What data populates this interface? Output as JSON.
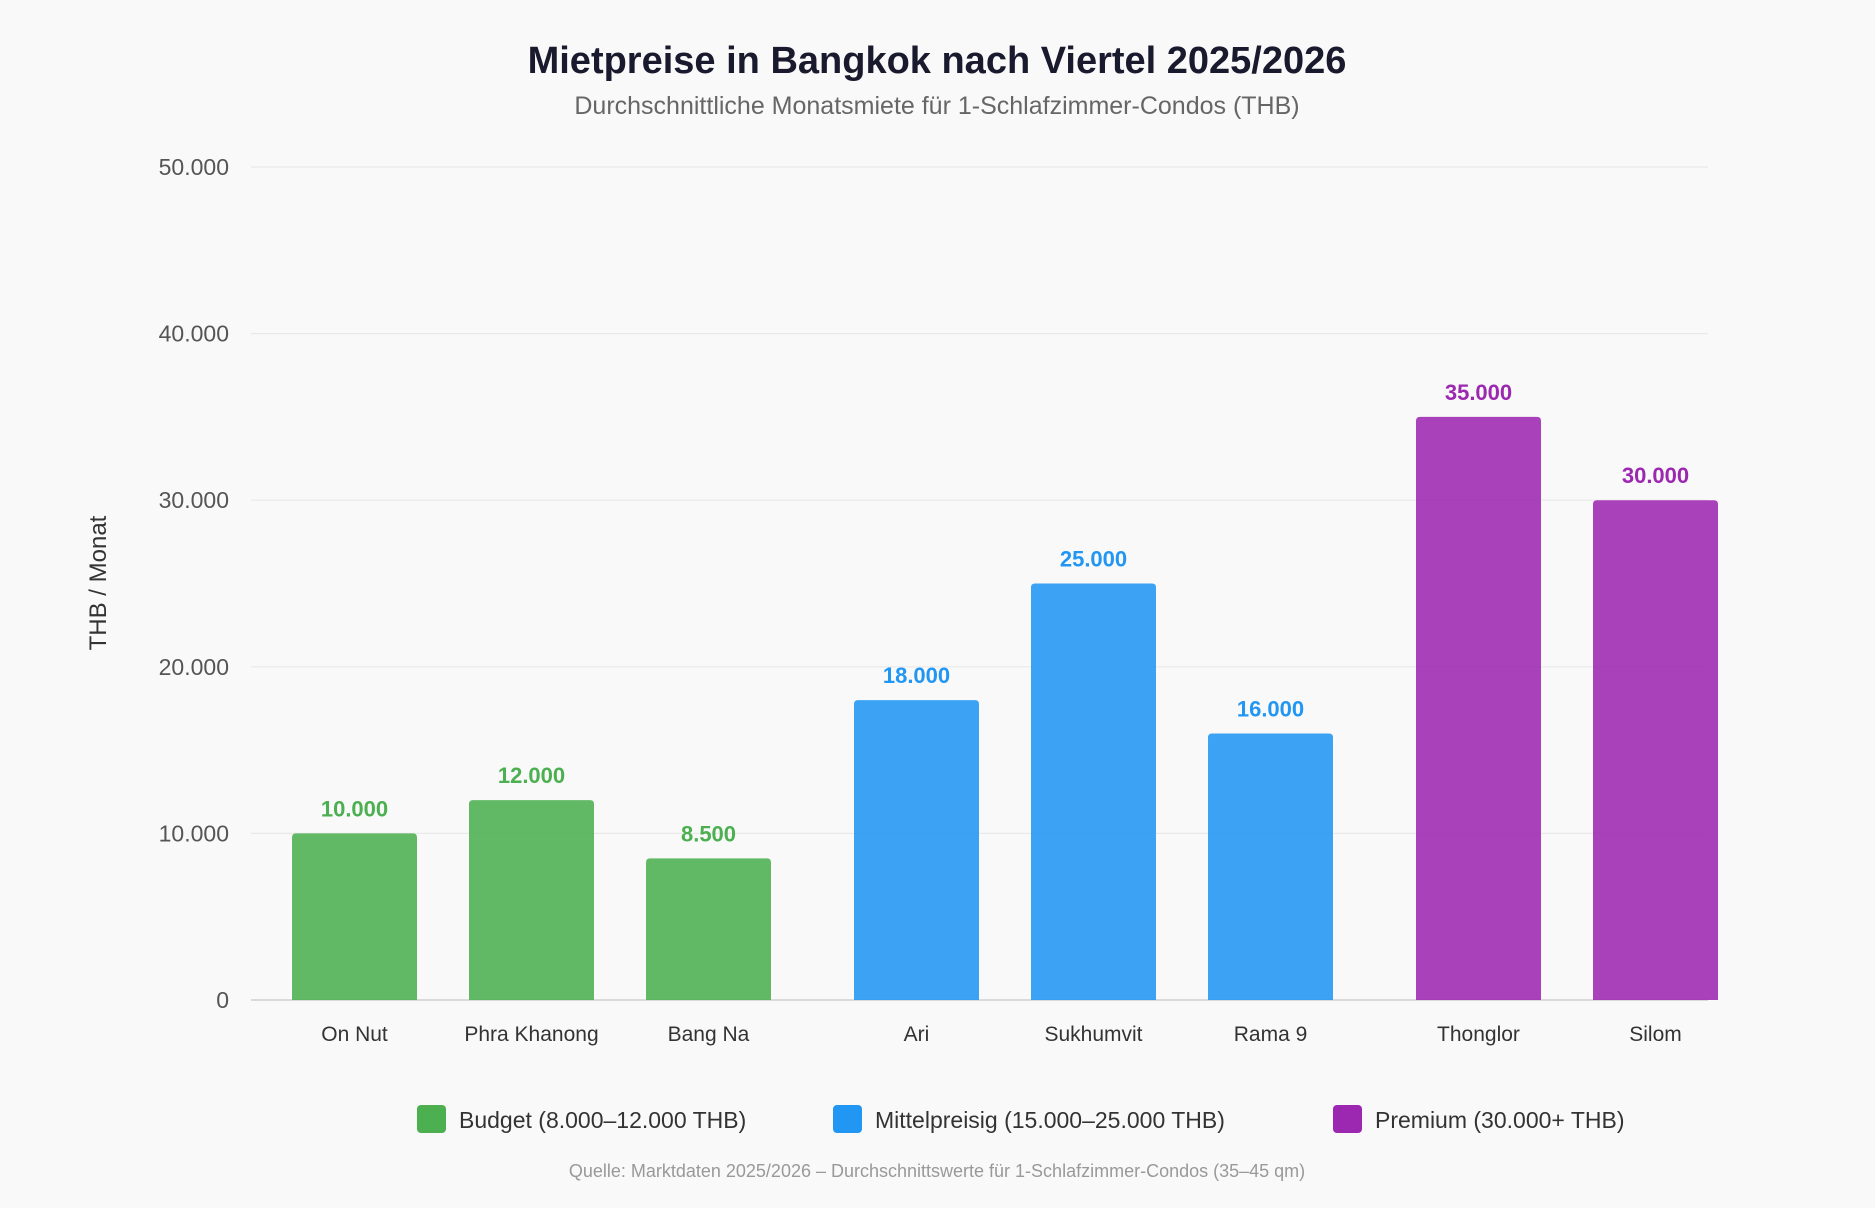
{
  "chart_data": {
    "type": "bar",
    "title": "Mietpreise in Bangkok nach Viertel 2025/2026",
    "subtitle": "Durchschnittliche Monatsmiete für 1-Schlafzimmer-Condos (THB)",
    "ylabel": "THB / Monat",
    "xlabel": "",
    "ylim": [
      0,
      50000
    ],
    "yticks": [
      {
        "value": 0,
        "label": "0"
      },
      {
        "value": 10000,
        "label": "10.000"
      },
      {
        "value": 20000,
        "label": "20.000"
      },
      {
        "value": 30000,
        "label": "30.000"
      },
      {
        "value": 40000,
        "label": "40.000"
      },
      {
        "value": 50000,
        "label": "50.000"
      }
    ],
    "grid": true,
    "legend_position": "bottom",
    "categories": [
      "On Nut",
      "Phra Khanong",
      "Bang Na",
      "Ari",
      "Sukhumvit",
      "Rama 9",
      "Thonglor",
      "Silom"
    ],
    "values": [
      10000,
      12000,
      8500,
      18000,
      25000,
      16000,
      35000,
      30000
    ],
    "value_labels": [
      "10.000",
      "12.000",
      "8.500",
      "18.000",
      "25.000",
      "16.000",
      "35.000",
      "30.000"
    ],
    "groups": [
      0,
      0,
      0,
      1,
      1,
      1,
      2,
      2
    ],
    "series": [
      {
        "name": "Budget (8.000–12.000 THB)",
        "color": "#4caf50",
        "label_color": "#4caf50"
      },
      {
        "name": "Mittelpreisig (15.000–25.000 THB)",
        "color": "#2196f3",
        "label_color": "#2196f3"
      },
      {
        "name": "Premium (30.000+ THB)",
        "color": "#9c27b0",
        "label_color": "#9c27b0"
      }
    ],
    "source": "Quelle: Marktdaten 2025/2026 – Durchschnittswerte für 1-Schlafzimmer-Condos (35–45 qm)"
  }
}
